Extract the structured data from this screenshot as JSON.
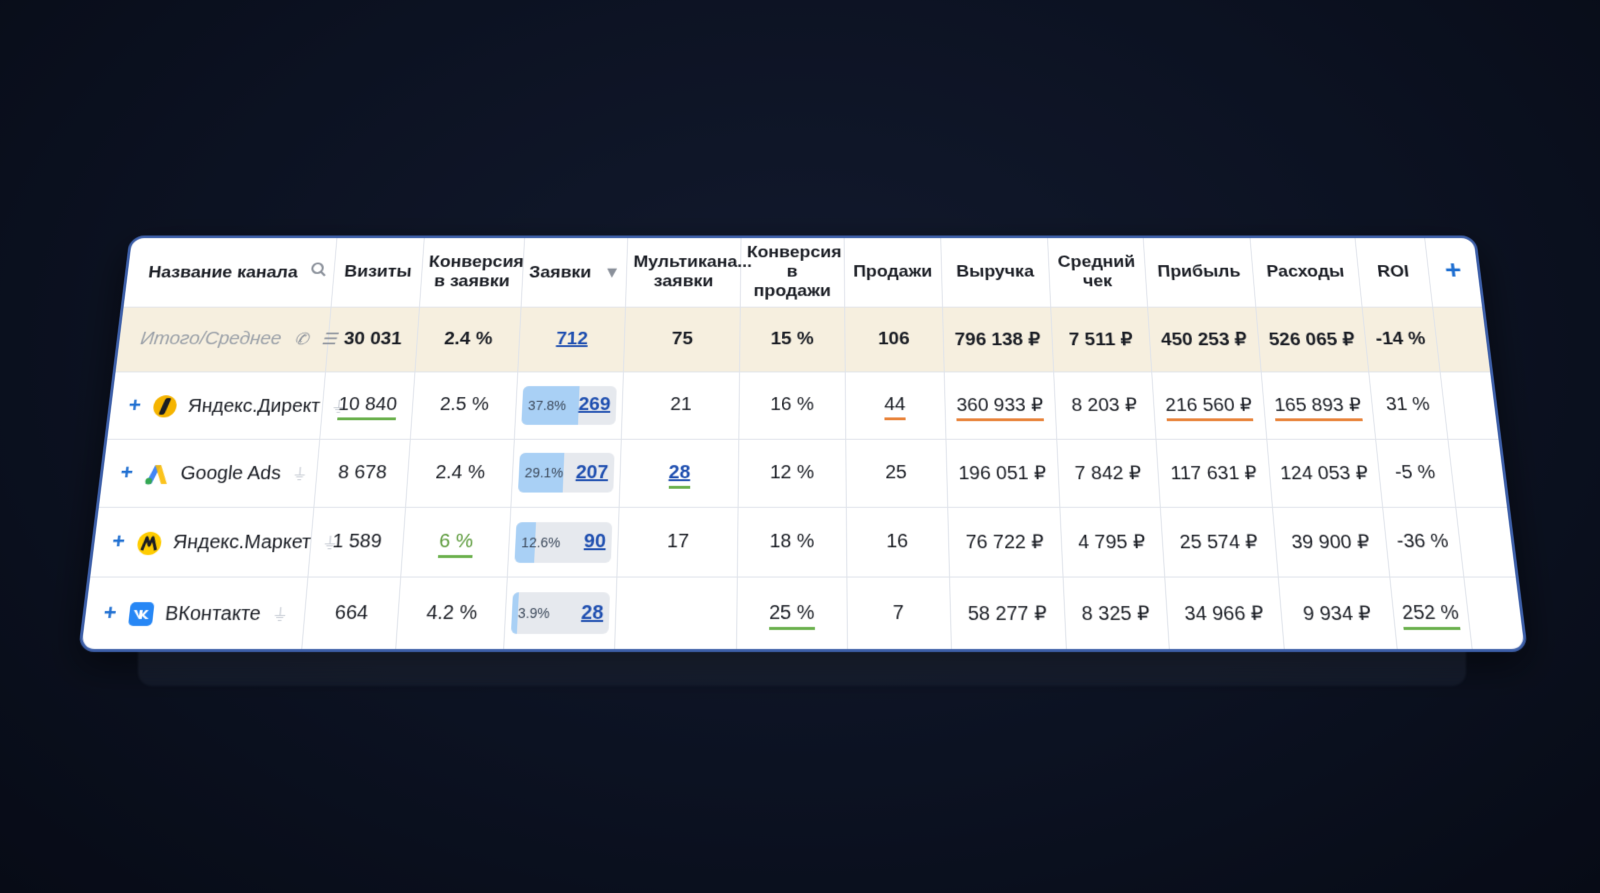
{
  "columns": {
    "channel": "Название канала",
    "visits": "Визиты",
    "conv_leads": "Конверсия в заявки",
    "leads": "Заявки",
    "multi": "Мультикана... заявки",
    "conv_sales": "Конверсия в продажи",
    "sales": "Продажи",
    "revenue": "Выручка",
    "avg_check": "Средний чек",
    "profit": "Прибыль",
    "expenses": "Расходы",
    "roi": "ROI",
    "add": "+"
  },
  "total": {
    "label": "Итого/Среднее",
    "visits": "30 031",
    "conv_leads": "2.4 %",
    "leads": "712",
    "multi": "75",
    "conv_sales": "15 %",
    "sales": "106",
    "revenue": "796 138 ₽",
    "avg_check": "7 511 ₽",
    "profit": "450 253 ₽",
    "expenses": "526 065 ₽",
    "roi": "-14 %"
  },
  "rows": [
    {
      "name": "Яндекс.Директ",
      "visits": "10 840",
      "conv_leads": "2.5 %",
      "leads_share": "37.8%",
      "leads_share_value": 37.8,
      "leads": "269",
      "multi": "21",
      "conv_sales": "16 %",
      "sales": "44",
      "revenue": "360 933 ₽",
      "avg_check": "8 203 ₽",
      "profit": "216 560 ₽",
      "expenses": "165 893 ₽",
      "roi": "31 %"
    },
    {
      "name": "Google Ads",
      "visits": "8 678",
      "conv_leads": "2.4 %",
      "leads_share": "29.1%",
      "leads_share_value": 29.1,
      "leads": "207",
      "multi": "28",
      "conv_sales": "12 %",
      "sales": "25",
      "revenue": "196 051 ₽",
      "avg_check": "7 842 ₽",
      "profit": "117 631 ₽",
      "expenses": "124 053 ₽",
      "roi": "-5 %"
    },
    {
      "name": "Яндекс.Маркет",
      "visits": "1 589",
      "conv_leads": "6 %",
      "leads_share": "12.6%",
      "leads_share_value": 12.6,
      "leads": "90",
      "multi": "17",
      "conv_sales": "18 %",
      "sales": "16",
      "revenue": "76 722 ₽",
      "avg_check": "4 795 ₽",
      "profit": "25 574 ₽",
      "expenses": "39 900 ₽",
      "roi": "-36 %"
    },
    {
      "name": "ВКонтакте",
      "visits": "664",
      "conv_leads": "4.2 %",
      "leads_share": "3.9%",
      "leads_share_value": 3.9,
      "leads": "28",
      "multi": "",
      "conv_sales": "25 %",
      "sales": "7",
      "revenue": "58 277 ₽",
      "avg_check": "8 325 ₽",
      "profit": "34 966 ₽",
      "expenses": "9 934 ₽",
      "roi": "252 %"
    }
  ],
  "icons": {
    "search": "search-icon",
    "sort": "sort-desc-icon",
    "phone": "phone-icon",
    "list": "list-icon",
    "plug": "plug-icon",
    "expand": "plus-icon"
  },
  "colors": {
    "accent": "#1f4fb0",
    "good": "#6ab04c",
    "warn": "#e8833a",
    "total_bg": "#f6efdf"
  },
  "ui": {
    "expand_symbol": "+"
  }
}
